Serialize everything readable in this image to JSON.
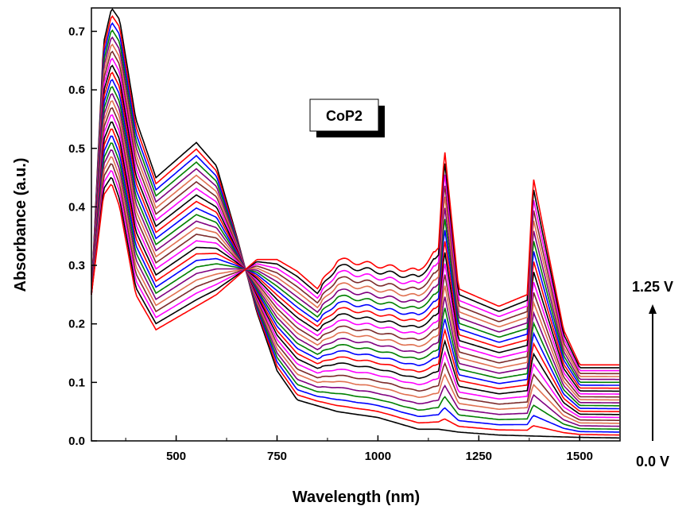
{
  "chart_data": {
    "type": "line",
    "title": "",
    "xlabel": "Wavelength (nm)",
    "ylabel": "Absorbance (a.u.)",
    "xlim": [
      290,
      1600
    ],
    "ylim": [
      0.0,
      0.74
    ],
    "x_ticks": [
      500,
      750,
      1000,
      1250,
      1500
    ],
    "x_tick_labels": [
      "500",
      "750",
      "1000",
      "1250",
      "1500"
    ],
    "y_ticks": [
      0.0,
      0.1,
      0.2,
      0.3,
      0.4,
      0.5,
      0.6,
      0.7
    ],
    "y_tick_labels": [
      "0.0",
      "0.1",
      "0.2",
      "0.3",
      "0.4",
      "0.5",
      "0.6",
      "0.7"
    ],
    "grid": false,
    "legend": "none",
    "annotations": {
      "sample_label": "CoP2",
      "arrow_top_label": "1.25 V",
      "arrow_bottom_label": "0.0 V"
    },
    "series_count": 26,
    "series_colors": [
      "#000000",
      "#ff0000",
      "#0000ff",
      "#008000",
      "#800080",
      "#e07050",
      "#7b2a2a",
      "#ff00ff"
    ],
    "start_spectrum_0V": {
      "x": [
        290,
        320,
        340,
        360,
        400,
        450,
        500,
        550,
        600,
        650,
        700,
        750,
        800,
        850,
        900,
        1000,
        1100,
        1150,
        1200,
        1300,
        1400,
        1500,
        1600
      ],
      "y": [
        0.25,
        0.68,
        0.74,
        0.72,
        0.55,
        0.45,
        0.48,
        0.51,
        0.47,
        0.35,
        0.22,
        0.12,
        0.07,
        0.06,
        0.05,
        0.04,
        0.02,
        0.02,
        0.015,
        0.01,
        0.008,
        0.006,
        0.005
      ]
    },
    "end_spectrum_1_25V": {
      "x": [
        290,
        320,
        340,
        360,
        400,
        450,
        500,
        550,
        600,
        650,
        700,
        750,
        800,
        850,
        900,
        1000,
        1100,
        1150,
        1165,
        1200,
        1300,
        1370,
        1385,
        1460,
        1500,
        1600
      ],
      "y": [
        0.25,
        0.42,
        0.44,
        0.4,
        0.25,
        0.19,
        0.21,
        0.23,
        0.25,
        0.28,
        0.31,
        0.31,
        0.29,
        0.26,
        0.31,
        0.3,
        0.29,
        0.33,
        0.5,
        0.26,
        0.23,
        0.25,
        0.45,
        0.19,
        0.13,
        0.13
      ]
    },
    "isosbestic_points": [
      {
        "x": 660,
        "y": 0.285
      },
      {
        "x": 800,
        "y": 0.29
      }
    ]
  }
}
